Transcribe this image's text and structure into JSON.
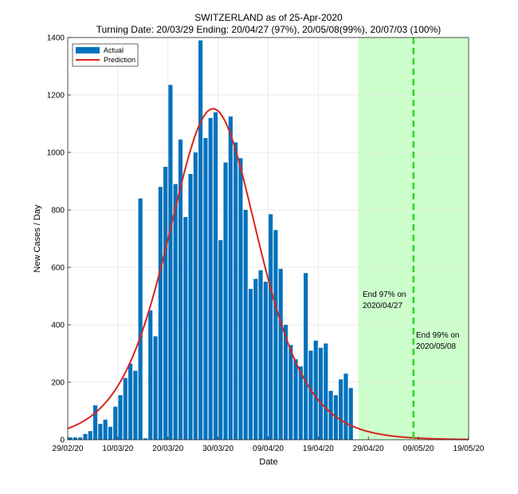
{
  "chart_data": {
    "type": "bar",
    "title": "SWITZERLAND as of 25-Apr-2020",
    "subtitle": "Turning Date: 20/03/29  Ending: 20/04/27 (97%), 20/05/08(99%), 20/07/03 (100%)",
    "xlabel": "Date",
    "ylabel": "New Cases / Day",
    "ylim": [
      0,
      1400
    ],
    "yticks": [
      0,
      200,
      400,
      600,
      800,
      1000,
      1200,
      1400
    ],
    "x_start": "29/02/20",
    "xticks": [
      {
        "day": 0,
        "label": "29/02/20"
      },
      {
        "day": 10,
        "label": "10/03/20"
      },
      {
        "day": 20,
        "label": "20/03/20"
      },
      {
        "day": 30,
        "label": "30/03/20"
      },
      {
        "day": 40,
        "label": "09/04/20"
      },
      {
        "day": 50,
        "label": "19/04/20"
      },
      {
        "day": 60,
        "label": "29/04/20"
      },
      {
        "day": 70,
        "label": "09/05/20"
      },
      {
        "day": 80,
        "label": "19/05/20"
      }
    ],
    "grid": true,
    "legend_position": "top-left",
    "series": [
      {
        "name": "Actual",
        "type": "bar",
        "color": "#0072BD",
        "start_date": "29/02/20",
        "values": [
          8,
          8,
          8,
          20,
          30,
          120,
          55,
          70,
          45,
          115,
          155,
          215,
          265,
          240,
          840,
          5,
          450,
          360,
          880,
          950,
          1235,
          890,
          1045,
          775,
          925,
          1000,
          1390,
          1050,
          1120,
          1140,
          695,
          965,
          1125,
          1035,
          980,
          800,
          525,
          560,
          590,
          550,
          785,
          730,
          595,
          400,
          330,
          280,
          255,
          580,
          310,
          345,
          320,
          335,
          170,
          155,
          210,
          230,
          180
        ]
      },
      {
        "name": "Prediction",
        "type": "line",
        "color": "#D7261E",
        "peak_value": 1152,
        "peak_date": "29/03/20"
      }
    ],
    "shaded_region": {
      "from": "20/04/27",
      "to": "20/07/03",
      "color": "#CCFFCC"
    },
    "vertical_line": {
      "date": "20/05/08",
      "color": "#22DD22",
      "style": "dashed"
    },
    "annotations": [
      {
        "line1": "End 97% on",
        "line2": "2020/04/27"
      },
      {
        "line1": "End 99% on",
        "line2": "2020/05/08"
      }
    ]
  }
}
